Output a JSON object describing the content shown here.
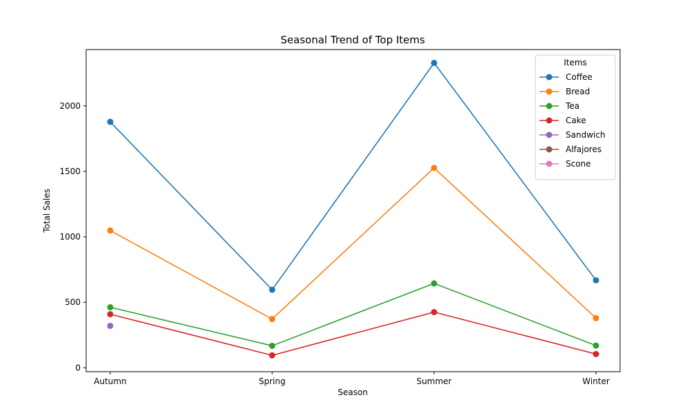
{
  "chart_data": {
    "type": "line",
    "title": "Seasonal Trend of Top Items",
    "xlabel": "Season",
    "ylabel": "Total Sales",
    "categories": [
      "Autumn",
      "Spring",
      "Summer",
      "Winter"
    ],
    "ylim": [
      -30,
      2430
    ],
    "yticks": [
      0,
      500,
      1000,
      1500,
      2000
    ],
    "grid": false,
    "legend": {
      "title": "Items",
      "placement": "top-right"
    },
    "series": [
      {
        "name": "Coffee",
        "color": "#1f77b4",
        "values": [
          1878,
          596,
          2328,
          668
        ]
      },
      {
        "name": "Bread",
        "color": "#ff7f0e",
        "values": [
          1048,
          372,
          1526,
          379
        ]
      },
      {
        "name": "Tea",
        "color": "#2ca02c",
        "values": [
          462,
          168,
          644,
          170
        ]
      },
      {
        "name": "Cake",
        "color": "#d62728",
        "values": [
          409,
          95,
          425,
          105
        ]
      },
      {
        "name": "Sandwich",
        "color": "#9467bd",
        "values": [
          320,
          null,
          null,
          null
        ]
      },
      {
        "name": "Alfajores",
        "color": "#8c564b",
        "values": [
          null,
          null,
          null,
          null
        ]
      },
      {
        "name": "Scone",
        "color": "#e377c2",
        "values": [
          null,
          null,
          null,
          null
        ]
      }
    ]
  }
}
